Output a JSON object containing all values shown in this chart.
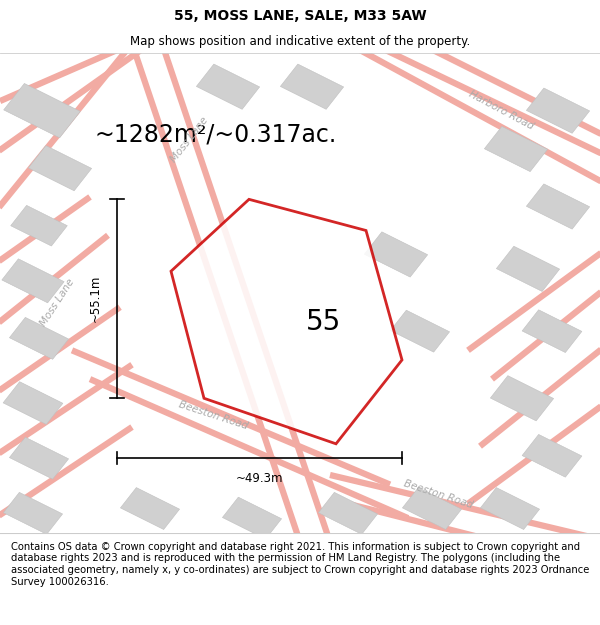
{
  "title": "55, MOSS LANE, SALE, M33 5AW",
  "subtitle": "Map shows position and indicative extent of the property.",
  "area_text": "~1282m²/~0.317ac.",
  "house_number": "55",
  "dim_vertical": "~55.1m",
  "dim_horizontal": "~49.3m",
  "footer_text": "Contains OS data © Crown copyright and database right 2021. This information is subject to Crown copyright and database rights 2023 and is reproduced with the permission of HM Land Registry. The polygons (including the associated geometry, namely x, y co-ordinates) are subject to Crown copyright and database rights 2023 Ordnance Survey 100026316.",
  "title_fontsize": 10,
  "subtitle_fontsize": 8.5,
  "area_fontsize": 17,
  "number_fontsize": 20,
  "dim_fontsize": 8.5,
  "footer_fontsize": 7.2,
  "road_label_fontsize": 7.5,
  "road_color": "#f2aba3",
  "road_lw": 4.5,
  "building_color": "#d0d0d0",
  "building_edge": "#c0c0c0",
  "property_outline_color": "#cc0000",
  "road_label_color": "#aaaaaa",
  "map_bg": "#faf8f7",
  "white": "#ffffff"
}
